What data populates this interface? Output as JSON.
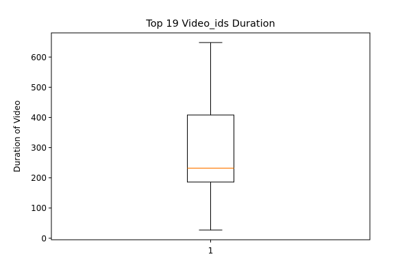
{
  "chart_data": {
    "type": "box",
    "title": "Top 19 Video_ids Duration",
    "xlabel": "",
    "ylabel": "Duration of Video",
    "categories": [
      "1"
    ],
    "ylim": [
      -5,
      680
    ],
    "yticks": [
      0,
      100,
      200,
      300,
      400,
      500,
      600
    ],
    "boxes": [
      {
        "category": "1",
        "whisker_low": 27,
        "q1": 186,
        "median": 232,
        "q3": 408,
        "whisker_high": 648
      }
    ],
    "grid": false,
    "colors": {
      "box": "#000000",
      "median": "#ff7f0e"
    }
  }
}
